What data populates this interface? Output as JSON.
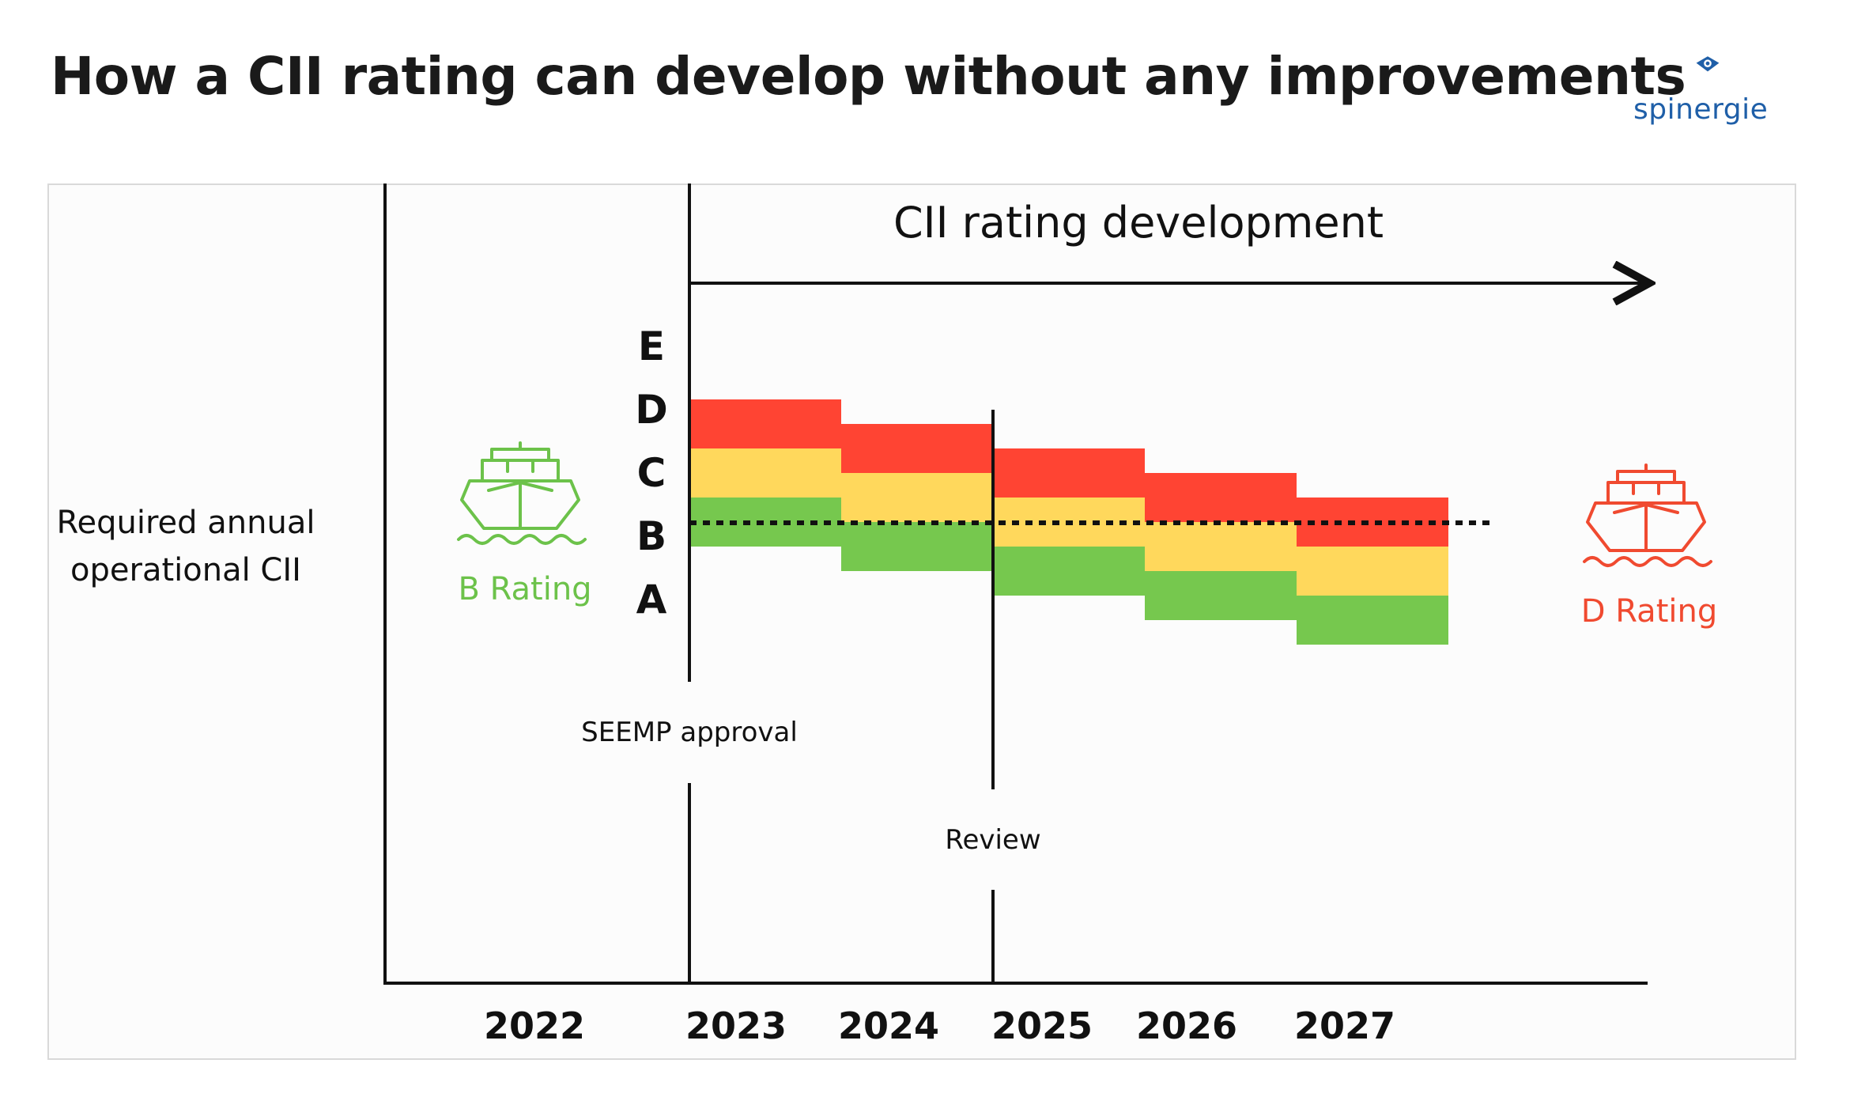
{
  "title": "How a CII rating can develop without any improvements",
  "logo": {
    "text": "spinergie",
    "icon": "eye-icon",
    "color": "#1f5fa8"
  },
  "diagram": {
    "header": "CII rating development",
    "ylabel_line1": "Required annual",
    "ylabel_line2": "operational CII",
    "rating_letters": [
      "E",
      "D",
      "C",
      "B",
      "A"
    ],
    "years": [
      "2022",
      "2023",
      "2024",
      "2025",
      "2026",
      "2027"
    ],
    "milestones": {
      "seemp": "SEEMP approval",
      "review": "Review"
    },
    "left_ship": {
      "label": "B Rating",
      "icon": "ship-icon",
      "color": "#6cc24a"
    },
    "right_ship": {
      "label": "D Rating",
      "icon": "ship-icon",
      "color": "#f04a30"
    },
    "colors": {
      "red": "#ff4433",
      "yellow": "#ffd85c",
      "green": "#76c84e"
    },
    "band_shift_steps": [
      0,
      1,
      2,
      3,
      4
    ]
  }
}
